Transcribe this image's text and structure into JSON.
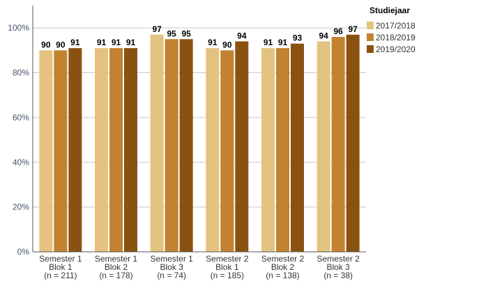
{
  "chart_data": {
    "type": "bar",
    "categories": [
      [
        "Semester 1",
        "Blok 1",
        "(n = 211)"
      ],
      [
        "Semester 1",
        "Blok 2",
        "(n = 178)"
      ],
      [
        "Semester 1",
        "Blok 3",
        "(n = 74)"
      ],
      [
        "Semester 2",
        "Blok 1",
        "(n = 185)"
      ],
      [
        "Semester 2",
        "Blok 2",
        "(n = 138)"
      ],
      [
        "Semester 2",
        "Blok 3",
        "(n = 38)"
      ]
    ],
    "series": [
      {
        "name": "2017/2018",
        "color": "#e3c37f",
        "values": [
          90,
          91,
          97,
          91,
          91,
          94
        ]
      },
      {
        "name": "2018/2019",
        "color": "#c2822f",
        "values": [
          90,
          91,
          95,
          90,
          91,
          96
        ]
      },
      {
        "name": "2019/2020",
        "color": "#8a5210",
        "values": [
          91,
          91,
          95,
          94,
          93,
          97
        ]
      }
    ],
    "legend_title": "Studiejaar",
    "legend_position": "top-right",
    "ylim": [
      0,
      110
    ],
    "yticks": [
      0,
      20,
      40,
      60,
      80,
      100
    ],
    "ytick_labels": [
      "0%",
      "20%",
      "40%",
      "60%",
      "80%",
      "100%"
    ],
    "grid": true,
    "xlabel": "",
    "ylabel": ""
  }
}
